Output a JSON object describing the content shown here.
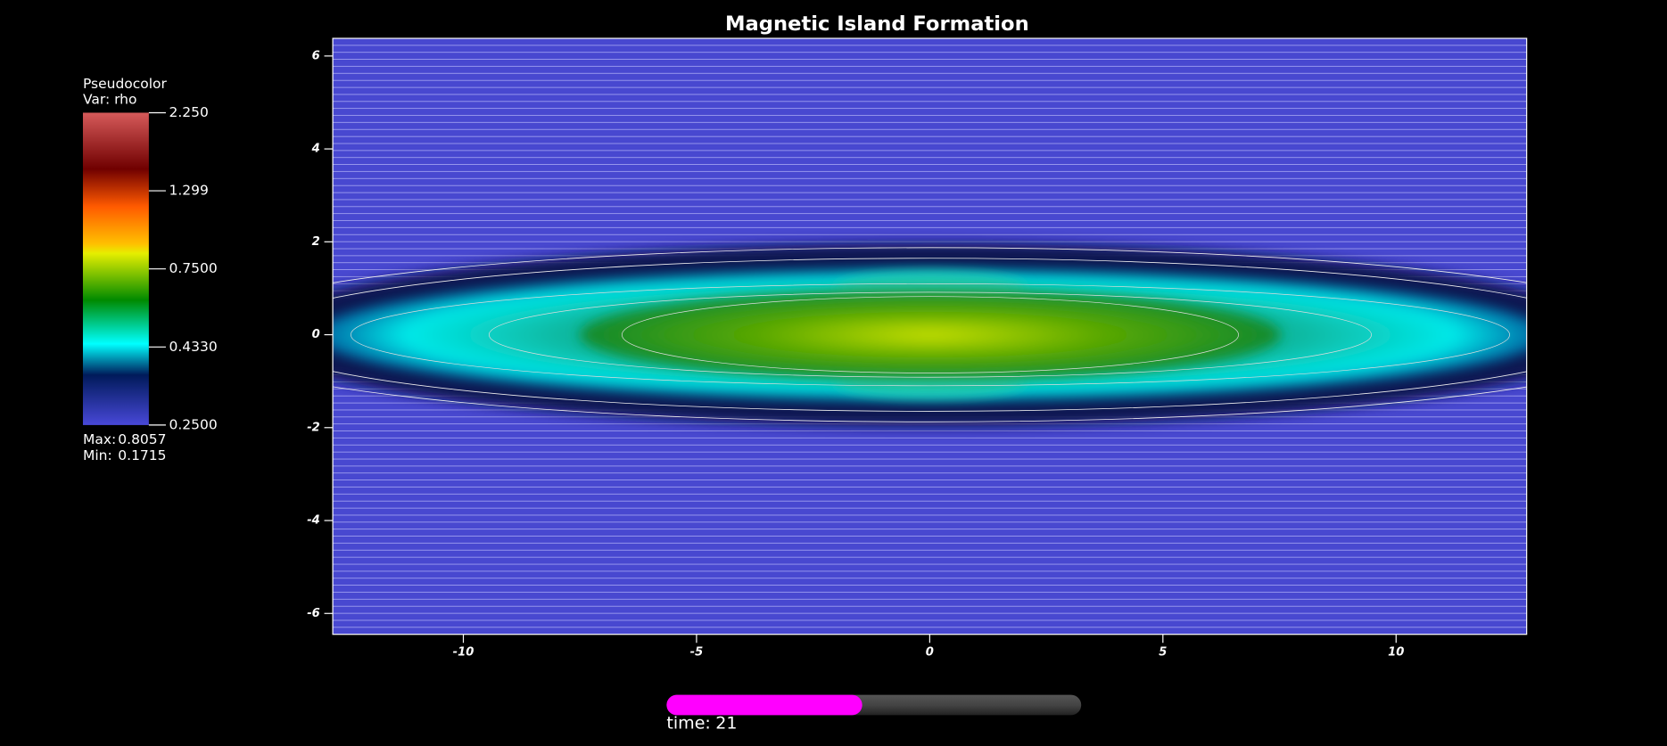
{
  "chart_data": {
    "type": "pseudocolor",
    "title": "Magnetic Island Formation",
    "xlim": [
      -12.8,
      12.8
    ],
    "xticks": [
      -10,
      -5,
      0,
      5,
      10
    ],
    "ylim": [
      -6.45,
      6.38
    ],
    "yticks": [
      6,
      4,
      2,
      0,
      -2,
      -4,
      -6
    ],
    "legend": {
      "plot_name": "Pseudocolor",
      "variable": "Var: rho",
      "log_scale": true,
      "range": [
        0.25,
        2.25
      ],
      "ticks": [
        {
          "value": 2.25,
          "label": "2.250"
        },
        {
          "value": 1.299,
          "label": "1.299"
        },
        {
          "value": 0.75,
          "label": "0.7500"
        },
        {
          "value": 0.433,
          "label": "0.4330"
        },
        {
          "value": 0.25,
          "label": "0.2500"
        }
      ],
      "max_label": "Max:",
      "max": 0.8057,
      "min_label": "Min:",
      "min": 0.1715
    },
    "time_label": "time:",
    "time": 21
  }
}
